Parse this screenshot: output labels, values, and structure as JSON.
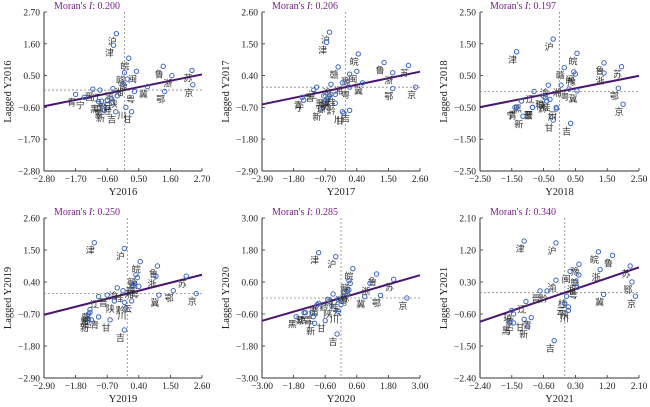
{
  "chart_data": [
    {
      "type": "scatter",
      "title": "Moran's I: 0.200",
      "title_prefix": "Moran's ",
      "title_italic": "I",
      "title_value": ": 0.200",
      "xlabel": "Y2016",
      "ylabel": "Lagged Y2016",
      "xlim": [
        -2.8,
        2.7
      ],
      "ylim": [
        -2.8,
        2.7
      ],
      "xticks": [
        "-2.80",
        "-1.70",
        "-0.60",
        "0.50",
        "1.60",
        "2.70"
      ],
      "yticks": [
        "2.70",
        "1.60",
        "0.50",
        "-0.60",
        "-1.70",
        "-2.80"
      ],
      "slope": 0.2,
      "points": [
        {
          "label": "沪",
          "x": -0.28,
          "y": 1.95
        },
        {
          "label": "津",
          "x": -0.38,
          "y": 1.55
        },
        {
          "label": "皖",
          "x": 0.15,
          "y": 1.1
        },
        {
          "label": "闽",
          "x": 0.42,
          "y": 0.65
        },
        {
          "label": "鲁",
          "x": 1.35,
          "y": 0.82
        },
        {
          "label": "浙",
          "x": 1.65,
          "y": 0.5
        },
        {
          "label": "苏",
          "x": 2.35,
          "y": 0.68
        },
        {
          "label": "京",
          "x": 2.38,
          "y": 0.18
        },
        {
          "label": "赣",
          "x": 0.0,
          "y": 0.6
        },
        {
          "label": "豫",
          "x": 0.1,
          "y": 0.38
        },
        {
          "label": "湘",
          "x": -0.05,
          "y": 0.2
        },
        {
          "label": "冀",
          "x": 0.8,
          "y": 0.12
        },
        {
          "label": "鄂",
          "x": 1.4,
          "y": -0.05
        },
        {
          "label": "粤",
          "x": 0.35,
          "y": -0.05
        },
        {
          "label": "晋",
          "x": -1.1,
          "y": 0.03
        },
        {
          "label": "辽",
          "x": -0.85,
          "y": 0.0
        },
        {
          "label": "渝",
          "x": -0.4,
          "y": 0.05
        },
        {
          "label": "陕",
          "x": -0.25,
          "y": -0.2
        },
        {
          "label": "青",
          "x": -1.7,
          "y": -0.15
        },
        {
          "label": "宁",
          "x": -1.4,
          "y": -0.25
        },
        {
          "label": "黔",
          "x": -0.6,
          "y": -0.35
        },
        {
          "label": "桂",
          "x": -0.45,
          "y": -0.45
        },
        {
          "label": "黑",
          "x": -0.9,
          "y": -0.4
        },
        {
          "label": "蒙",
          "x": -0.75,
          "y": -0.55
        },
        {
          "label": "新",
          "x": -0.7,
          "y": -0.7
        },
        {
          "label": "吉",
          "x": -0.3,
          "y": -0.75
        },
        {
          "label": "川",
          "x": 0.05,
          "y": -0.6
        },
        {
          "label": "甘",
          "x": 0.25,
          "y": -0.75
        },
        {
          "label": "云",
          "x": -0.45,
          "y": -0.3
        },
        {
          "label": "琼",
          "x": -0.8,
          "y": -0.38
        }
      ]
    },
    {
      "type": "scatter",
      "title": "Moran's I: 0.206",
      "title_prefix": "Moran's ",
      "title_italic": "I",
      "title_value": ": 0.206",
      "xlabel": "Y2017",
      "ylabel": "Lagged Y2017",
      "xlim": [
        -2.9,
        2.6
      ],
      "ylim": [
        -2.9,
        2.6
      ],
      "xticks": [
        "-2.90",
        "-1.80",
        "-0.70",
        "0.40",
        "1.50",
        "2.60"
      ],
      "yticks": [
        "2.60",
        "1.50",
        "0.40",
        "-0.70",
        "-1.80",
        "-2.90"
      ],
      "slope": 0.206,
      "points": [
        {
          "label": "沪",
          "x": -0.55,
          "y": 1.9
        },
        {
          "label": "津",
          "x": -0.65,
          "y": 1.55
        },
        {
          "label": "皖",
          "x": 0.45,
          "y": 1.15
        },
        {
          "label": "闽",
          "x": 0.4,
          "y": 0.55
        },
        {
          "label": "鲁",
          "x": 1.35,
          "y": 0.85
        },
        {
          "label": "浙",
          "x": 1.65,
          "y": 0.5
        },
        {
          "label": "苏",
          "x": 2.2,
          "y": 0.75
        },
        {
          "label": "京",
          "x": 2.45,
          "y": 0.0
        },
        {
          "label": "赣",
          "x": -0.25,
          "y": 0.7
        },
        {
          "label": "豫",
          "x": 0.15,
          "y": 0.45
        },
        {
          "label": "湘",
          "x": -0.1,
          "y": 0.15
        },
        {
          "label": "冀",
          "x": 0.6,
          "y": 0.15
        },
        {
          "label": "鄂",
          "x": 1.65,
          "y": -0.05
        },
        {
          "label": "粤",
          "x": 0.15,
          "y": 0.0
        },
        {
          "label": "辽",
          "x": -1.0,
          "y": 0.0
        },
        {
          "label": "渝",
          "x": -0.5,
          "y": 0.1
        },
        {
          "label": "晋",
          "x": -1.1,
          "y": -0.1
        },
        {
          "label": "青",
          "x": -1.5,
          "y": -0.35
        },
        {
          "label": "宁",
          "x": -1.45,
          "y": -0.45
        },
        {
          "label": "黑",
          "x": -0.75,
          "y": -0.3
        },
        {
          "label": "蒙",
          "x": -0.6,
          "y": -0.4
        },
        {
          "label": "新",
          "x": -0.85,
          "y": -0.75
        },
        {
          "label": "黔",
          "x": -0.35,
          "y": -0.55
        },
        {
          "label": "桂",
          "x": -0.35,
          "y": -0.25
        },
        {
          "label": "川",
          "x": -0.1,
          "y": -0.85
        },
        {
          "label": "甘",
          "x": -0.05,
          "y": -0.9
        },
        {
          "label": "吉",
          "x": 0.15,
          "y": -0.8
        },
        {
          "label": "陕",
          "x": -0.55,
          "y": -0.3
        },
        {
          "label": "云",
          "x": -0.5,
          "y": -0.25
        },
        {
          "label": "琼",
          "x": -0.7,
          "y": -0.5
        }
      ]
    },
    {
      "type": "scatter",
      "title": "Moran's I: 0.197",
      "title_prefix": "Moran's ",
      "title_italic": "I",
      "title_value": ": 0.197",
      "xlabel": "Y2018",
      "ylabel": "Lagged Y2018",
      "xlim": [
        -2.5,
        2.5
      ],
      "ylim": [
        -2.5,
        2.5
      ],
      "xticks": [
        "-2.50",
        "-1.50",
        "-0.50",
        "0.50",
        "1.50",
        "2.50"
      ],
      "yticks": [
        "2.50",
        "1.50",
        "0.50",
        "-0.50",
        "-1.50",
        "-2.50"
      ],
      "slope": 0.197,
      "points": [
        {
          "label": "沪",
          "x": -0.2,
          "y": 1.65
        },
        {
          "label": "津",
          "x": -1.35,
          "y": 1.25
        },
        {
          "label": "皖",
          "x": 0.55,
          "y": 1.2
        },
        {
          "label": "闽",
          "x": 0.45,
          "y": 0.62
        },
        {
          "label": "鲁",
          "x": 1.4,
          "y": 0.9
        },
        {
          "label": "浙",
          "x": 1.4,
          "y": 0.58
        },
        {
          "label": "苏",
          "x": 1.95,
          "y": 0.78
        },
        {
          "label": "京",
          "x": 2.0,
          "y": -0.4
        },
        {
          "label": "鄂",
          "x": 1.85,
          "y": 0.1
        },
        {
          "label": "赣",
          "x": 0.15,
          "y": 0.75
        },
        {
          "label": "豫",
          "x": 0.5,
          "y": 0.55
        },
        {
          "label": "湘",
          "x": 0.05,
          "y": 0.2
        },
        {
          "label": "粤",
          "x": 0.3,
          "y": 0.08
        },
        {
          "label": "冀",
          "x": 0.55,
          "y": 0.02
        },
        {
          "label": "渝",
          "x": -0.35,
          "y": 0.2
        },
        {
          "label": "辽",
          "x": -0.8,
          "y": 0.0
        },
        {
          "label": "陕",
          "x": -0.45,
          "y": -0.2
        },
        {
          "label": "桂",
          "x": -0.3,
          "y": -0.25
        },
        {
          "label": "黔",
          "x": -0.4,
          "y": -0.3
        },
        {
          "label": "晋",
          "x": -0.85,
          "y": -0.5
        },
        {
          "label": "黑",
          "x": -1.2,
          "y": -0.3
        },
        {
          "label": "宁",
          "x": -1.4,
          "y": -0.5
        },
        {
          "label": "青",
          "x": -1.35,
          "y": -0.5
        },
        {
          "label": "蒙",
          "x": -0.85,
          "y": -0.5
        },
        {
          "label": "新",
          "x": -1.15,
          "y": -0.78
        },
        {
          "label": "云",
          "x": -0.1,
          "y": -0.5
        },
        {
          "label": "川",
          "x": -0.1,
          "y": -0.55
        },
        {
          "label": "甘",
          "x": -0.2,
          "y": -0.9
        },
        {
          "label": "吉",
          "x": 0.35,
          "y": -1.0
        },
        {
          "label": "琼",
          "x": -0.5,
          "y": -0.15
        }
      ]
    },
    {
      "type": "scatter",
      "title": "Moran's I: 0.250",
      "title_prefix": "Moran's ",
      "title_italic": "I",
      "title_value": ": 0.250",
      "xlabel": "Y2019",
      "ylabel": "Lagged Y2019",
      "xlim": [
        -2.9,
        2.6
      ],
      "ylim": [
        -2.9,
        2.6
      ],
      "xticks": [
        "-2.90",
        "-1.80",
        "-0.70",
        "0.40",
        "1.50",
        "2.60"
      ],
      "yticks": [
        "2.60",
        "1.50",
        "0.40",
        "-0.70",
        "-1.80",
        "-2.90"
      ],
      "slope": 0.25,
      "points": [
        {
          "label": "津",
          "x": -1.15,
          "y": 1.75
        },
        {
          "label": "沪",
          "x": -0.1,
          "y": 1.55
        },
        {
          "label": "皖",
          "x": 0.45,
          "y": 1.1
        },
        {
          "label": "鲁",
          "x": 1.05,
          "y": 0.95
        },
        {
          "label": "浙",
          "x": 1.0,
          "y": 0.6
        },
        {
          "label": "苏",
          "x": 2.05,
          "y": 0.6
        },
        {
          "label": "京",
          "x": 2.4,
          "y": 0.0
        },
        {
          "label": "鄂",
          "x": 1.6,
          "y": 0.1
        },
        {
          "label": "赣",
          "x": 0.3,
          "y": 0.65
        },
        {
          "label": "闽",
          "x": 0.35,
          "y": 0.55
        },
        {
          "label": "豫",
          "x": 0.25,
          "y": 0.35
        },
        {
          "label": "湘",
          "x": 0.2,
          "y": 0.25
        },
        {
          "label": "粤",
          "x": 0.4,
          "y": 0.25
        },
        {
          "label": "冀",
          "x": 1.1,
          "y": -0.05
        },
        {
          "label": "渝",
          "x": -0.35,
          "y": 0.2
        },
        {
          "label": "晋",
          "x": -0.7,
          "y": -0.05
        },
        {
          "label": "辽",
          "x": -1.0,
          "y": -0.1
        },
        {
          "label": "桂",
          "x": -0.15,
          "y": 0.1
        },
        {
          "label": "黔",
          "x": -0.1,
          "y": -0.3
        },
        {
          "label": "陕",
          "x": -0.45,
          "y": -0.25
        },
        {
          "label": "云",
          "x": 0.15,
          "y": -0.25
        },
        {
          "label": "川",
          "x": -0.05,
          "y": -0.5
        },
        {
          "label": "蒙",
          "x": -1.3,
          "y": -0.55
        },
        {
          "label": "青",
          "x": -1.0,
          "y": -0.8
        },
        {
          "label": "黑",
          "x": -1.35,
          "y": -0.7
        },
        {
          "label": "宁",
          "x": -1.25,
          "y": -0.9
        },
        {
          "label": "新",
          "x": -1.35,
          "y": -0.9
        },
        {
          "label": "甘",
          "x": -0.6,
          "y": -0.9
        },
        {
          "label": "吉",
          "x": -0.1,
          "y": -1.25
        },
        {
          "label": "琼",
          "x": -1.3,
          "y": -0.65
        }
      ]
    },
    {
      "type": "scatter",
      "title": "Moran's I: 0.285",
      "title_prefix": "Moran's ",
      "title_italic": "I",
      "title_value": ": 0.285",
      "xlabel": "Y2020",
      "ylabel": "Lagged Y2020",
      "xlim": [
        -3.0,
        3.0
      ],
      "ylim": [
        -3.0,
        3.0
      ],
      "xticks": [
        "-3.00",
        "-1.80",
        "-0.60",
        "0.60",
        "1.80",
        "3.00"
      ],
      "yticks": [
        "3.00",
        "1.80",
        "0.60",
        "-0.60",
        "-1.80",
        "-3.00"
      ],
      "slope": 0.285,
      "points": [
        {
          "label": "津",
          "x": -0.85,
          "y": 1.7
        },
        {
          "label": "沪",
          "x": -0.2,
          "y": 1.55
        },
        {
          "label": "皖",
          "x": 0.45,
          "y": 1.1
        },
        {
          "label": "鲁",
          "x": 1.35,
          "y": 0.9
        },
        {
          "label": "浙",
          "x": 1.1,
          "y": 0.55
        },
        {
          "label": "苏",
          "x": 2.0,
          "y": 0.7
        },
        {
          "label": "京",
          "x": 2.5,
          "y": 0.0
        },
        {
          "label": "鄂",
          "x": 1.5,
          "y": 0.1
        },
        {
          "label": "赣",
          "x": 0.3,
          "y": 0.65
        },
        {
          "label": "闽",
          "x": 0.35,
          "y": 0.55
        },
        {
          "label": "豫",
          "x": 0.3,
          "y": 0.3
        },
        {
          "label": "湘",
          "x": 0.1,
          "y": 0.2
        },
        {
          "label": "粤",
          "x": 0.25,
          "y": 0.15
        },
        {
          "label": "冀",
          "x": 0.9,
          "y": 0.05
        },
        {
          "label": "渝",
          "x": -0.3,
          "y": 0.15
        },
        {
          "label": "黔",
          "x": -0.5,
          "y": -0.05
        },
        {
          "label": "晋",
          "x": -0.85,
          "y": -0.2
        },
        {
          "label": "辽",
          "x": -0.9,
          "y": -0.25
        },
        {
          "label": "桂",
          "x": -0.1,
          "y": -0.05
        },
        {
          "label": "云",
          "x": 0.0,
          "y": -0.25
        },
        {
          "label": "陕",
          "x": -0.35,
          "y": -0.3
        },
        {
          "label": "川",
          "x": -0.1,
          "y": -0.5
        },
        {
          "label": "蒙",
          "x": -1.4,
          "y": -0.55
        },
        {
          "label": "黑",
          "x": -1.7,
          "y": -0.7
        },
        {
          "label": "宁",
          "x": -1.05,
          "y": -0.7
        },
        {
          "label": "新",
          "x": -1.0,
          "y": -0.95
        },
        {
          "label": "甘",
          "x": -0.6,
          "y": -0.85
        },
        {
          "label": "吉",
          "x": -0.15,
          "y": -1.35
        },
        {
          "label": "青",
          "x": -1.1,
          "y": -0.55
        },
        {
          "label": "琼",
          "x": -1.35,
          "y": -0.55
        }
      ]
    },
    {
      "type": "scatter",
      "title": "Moran's I: 0.340",
      "title_prefix": "Moran's ",
      "title_italic": "I",
      "title_value": ": 0.340",
      "xlabel": "Y2021",
      "ylabel": "Lagged Y2021",
      "xlim": [
        -2.4,
        2.1
      ],
      "ylim": [
        -2.4,
        2.1
      ],
      "xticks": [
        "-2.40",
        "-1.50",
        "-0.60",
        "0.30",
        "1.20",
        "2.10"
      ],
      "yticks": [
        "2.10",
        "1.20",
        "0.30",
        "-0.60",
        "-1.50",
        "-2.40"
      ],
      "slope": 0.34,
      "points": [
        {
          "label": "津",
          "x": -1.15,
          "y": 1.45
        },
        {
          "label": "沪",
          "x": -0.25,
          "y": 1.4
        },
        {
          "label": "皖",
          "x": 0.95,
          "y": 1.15
        },
        {
          "label": "鲁",
          "x": 1.35,
          "y": 1.05
        },
        {
          "label": "浙",
          "x": 1.0,
          "y": 0.65
        },
        {
          "label": "苏",
          "x": 1.85,
          "y": 0.75
        },
        {
          "label": "鄂",
          "x": 1.9,
          "y": 0.3
        },
        {
          "label": "京",
          "x": 2.0,
          "y": -0.1
        },
        {
          "label": "豫",
          "x": 0.4,
          "y": 0.8
        },
        {
          "label": "闽",
          "x": 0.15,
          "y": 0.6
        },
        {
          "label": "赣",
          "x": 0.4,
          "y": 0.5
        },
        {
          "label": "湘",
          "x": 0.3,
          "y": 0.3
        },
        {
          "label": "粤",
          "x": 0.35,
          "y": 0.15
        },
        {
          "label": "冀",
          "x": 1.1,
          "y": -0.05
        },
        {
          "label": "渝",
          "x": -0.25,
          "y": 0.35
        },
        {
          "label": "晋",
          "x": -0.7,
          "y": 0.05
        },
        {
          "label": "黔",
          "x": -0.5,
          "y": 0.05
        },
        {
          "label": "辽",
          "x": -1.1,
          "y": -0.25
        },
        {
          "label": "桂",
          "x": 0.05,
          "y": -0.1
        },
        {
          "label": "云",
          "x": 0.0,
          "y": -0.3
        },
        {
          "label": "陕",
          "x": 0.1,
          "y": -0.4
        },
        {
          "label": "川",
          "x": 0.1,
          "y": -0.5
        },
        {
          "label": "琼",
          "x": -1.5,
          "y": -0.5
        },
        {
          "label": "蒙",
          "x": -1.45,
          "y": -0.6
        },
        {
          "label": "黑",
          "x": -1.55,
          "y": -0.85
        },
        {
          "label": "宁",
          "x": -1.45,
          "y": -0.85
        },
        {
          "label": "甘",
          "x": -1.15,
          "y": -0.75
        },
        {
          "label": "青",
          "x": -0.95,
          "y": -0.7
        },
        {
          "label": "新",
          "x": -1.05,
          "y": -0.95
        },
        {
          "label": "吉",
          "x": -0.3,
          "y": -1.35
        }
      ]
    }
  ],
  "colors": {
    "point": "#3a66c4",
    "regression": "#4a1570",
    "title": "#7a1f8a",
    "axis": "#333333",
    "refline": "#888888"
  }
}
